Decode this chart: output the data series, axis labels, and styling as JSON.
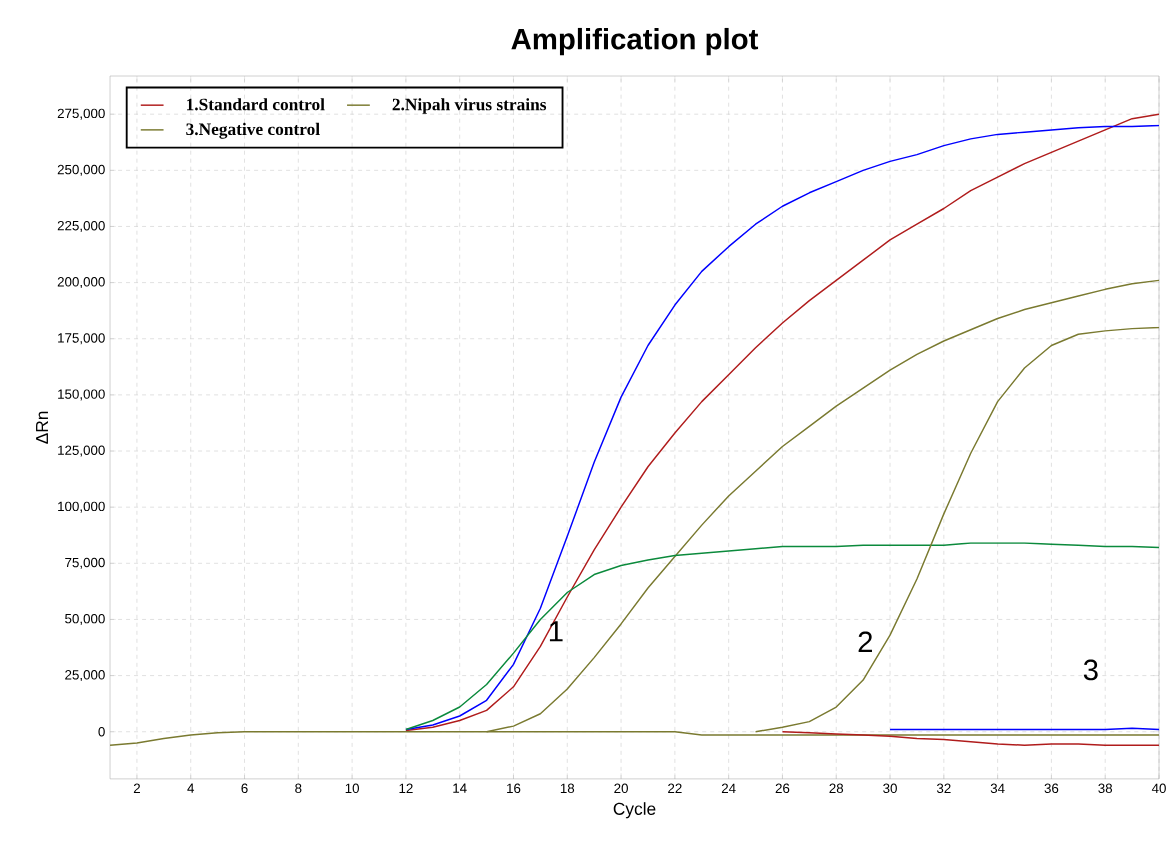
{
  "chart_data": {
    "type": "line",
    "title": "Amplification plot",
    "xlabel": "Cycle",
    "ylabel": "ΔRn",
    "x": [
      1,
      2,
      3,
      4,
      5,
      6,
      7,
      8,
      9,
      10,
      11,
      12,
      13,
      14,
      15,
      16,
      17,
      18,
      19,
      20,
      21,
      22,
      23,
      24,
      25,
      26,
      27,
      28,
      29,
      30,
      31,
      32,
      33,
      34,
      35,
      36,
      37,
      38,
      39,
      40
    ],
    "series": [
      {
        "name": "1.Standard control",
        "color": "#b01c1c",
        "values": [
          null,
          null,
          null,
          null,
          null,
          null,
          null,
          null,
          null,
          null,
          null,
          500,
          2000,
          5000,
          9500,
          20000,
          38000,
          60000,
          81000,
          100000,
          118000,
          133000,
          147000,
          159000,
          171000,
          182000,
          192000,
          201000,
          210000,
          219000,
          226000,
          233000,
          241000,
          247000,
          253000,
          258000,
          263000,
          268000,
          273000,
          275000
        ]
      },
      {
        "color": "#0000ff",
        "values": [
          null,
          null,
          null,
          null,
          null,
          null,
          null,
          null,
          null,
          null,
          null,
          1000,
          3000,
          7000,
          14000,
          30000,
          55000,
          87000,
          120000,
          149000,
          172000,
          190000,
          205000,
          216000,
          226000,
          234000,
          240000,
          245000,
          250000,
          254000,
          257000,
          261000,
          264000,
          266000,
          267000,
          268000,
          269000,
          269500,
          269500,
          270000
        ]
      },
      {
        "color": "#7a7a30",
        "values": [
          null,
          null,
          null,
          null,
          null,
          null,
          null,
          null,
          null,
          null,
          null,
          null,
          null,
          null,
          0,
          2500,
          8000,
          19000,
          33000,
          48000,
          64000,
          78000,
          92000,
          105000,
          116000,
          127000,
          136000,
          145000,
          153000,
          161000,
          168000,
          174000,
          179000,
          184000,
          188000,
          191000,
          194000,
          197000,
          199500,
          201000
        ]
      },
      {
        "color": "#0b8a3c",
        "values": [
          null,
          null,
          null,
          null,
          null,
          null,
          null,
          null,
          null,
          null,
          null,
          1000,
          5000,
          11000,
          21000,
          35000,
          50000,
          62000,
          70000,
          74000,
          76500,
          78500,
          79500,
          80500,
          81500,
          82500,
          82500,
          82500,
          83000,
          83000,
          83000,
          83000,
          84000,
          84000,
          84000,
          83500,
          83000,
          82500,
          82500,
          82000
        ]
      },
      {
        "name": "2.Nipah virus strains",
        "color": "#7a7a30",
        "values": [
          null,
          null,
          null,
          null,
          null,
          null,
          null,
          null,
          null,
          null,
          null,
          null,
          null,
          null,
          null,
          null,
          null,
          null,
          null,
          null,
          null,
          null,
          null,
          null,
          0,
          2000,
          4500,
          11000,
          23000,
          43000,
          68000,
          97000,
          124000,
          147000,
          162000,
          172000,
          177000,
          178500,
          179500,
          180000
        ]
      },
      {
        "name": "3.Negative control",
        "color": "#7a7a30",
        "values": [
          -6000,
          -5000,
          -3000,
          -1500,
          -500,
          0,
          0,
          0,
          0,
          0,
          0,
          0,
          0,
          0,
          0,
          0,
          0,
          0,
          0,
          0,
          0,
          0,
          -1500,
          -1500,
          -1500,
          -1500,
          -1500,
          -1500,
          -1500,
          -1500,
          -1500,
          -1500,
          -1500,
          -1500,
          -1500,
          -1500,
          -1500,
          -1500,
          -1500,
          -1500
        ]
      },
      {
        "color": "#b01c1c",
        "values": [
          null,
          null,
          null,
          null,
          null,
          null,
          null,
          null,
          null,
          null,
          null,
          null,
          null,
          null,
          null,
          null,
          null,
          null,
          null,
          null,
          null,
          null,
          null,
          null,
          null,
          0,
          -500,
          -1000,
          -1500,
          -2000,
          -3000,
          -3500,
          -4500,
          -5500,
          -6000,
          -5500,
          -5500,
          -6000,
          -6000,
          -6000
        ]
      },
      {
        "color": "#0000ff",
        "values": [
          null,
          null,
          null,
          null,
          null,
          null,
          null,
          null,
          null,
          null,
          null,
          null,
          null,
          null,
          null,
          null,
          null,
          null,
          null,
          null,
          null,
          null,
          null,
          null,
          null,
          null,
          null,
          null,
          null,
          1000,
          1000,
          1000,
          1000,
          1000,
          1000,
          1000,
          1000,
          1000,
          1500,
          1000
        ]
      }
    ],
    "xlim": [
      1,
      40
    ],
    "ylim": [
      -21000,
      292000
    ],
    "xticks": [
      2,
      4,
      6,
      8,
      10,
      12,
      14,
      16,
      18,
      20,
      22,
      24,
      26,
      28,
      30,
      32,
      34,
      36,
      38,
      40
    ],
    "yticks": [
      {
        "value": 0,
        "label": "0"
      },
      {
        "value": 25000,
        "label": "25,000"
      },
      {
        "value": 50000,
        "label": "50,000"
      },
      {
        "value": 75000,
        "label": "75,000"
      },
      {
        "value": 100000,
        "label": "100,000"
      },
      {
        "value": 125000,
        "label": "125,000"
      },
      {
        "value": 150000,
        "label": "150,000"
      },
      {
        "value": 175000,
        "label": "175,000"
      },
      {
        "value": 200000,
        "label": "200,000"
      },
      {
        "value": 225000,
        "label": "225,000"
      },
      {
        "value": 250000,
        "label": "250,000"
      },
      {
        "value": 275000,
        "label": "275,000"
      }
    ],
    "annotations": [
      "1",
      "2",
      "3"
    ],
    "grid": true,
    "legend": "top left"
  }
}
